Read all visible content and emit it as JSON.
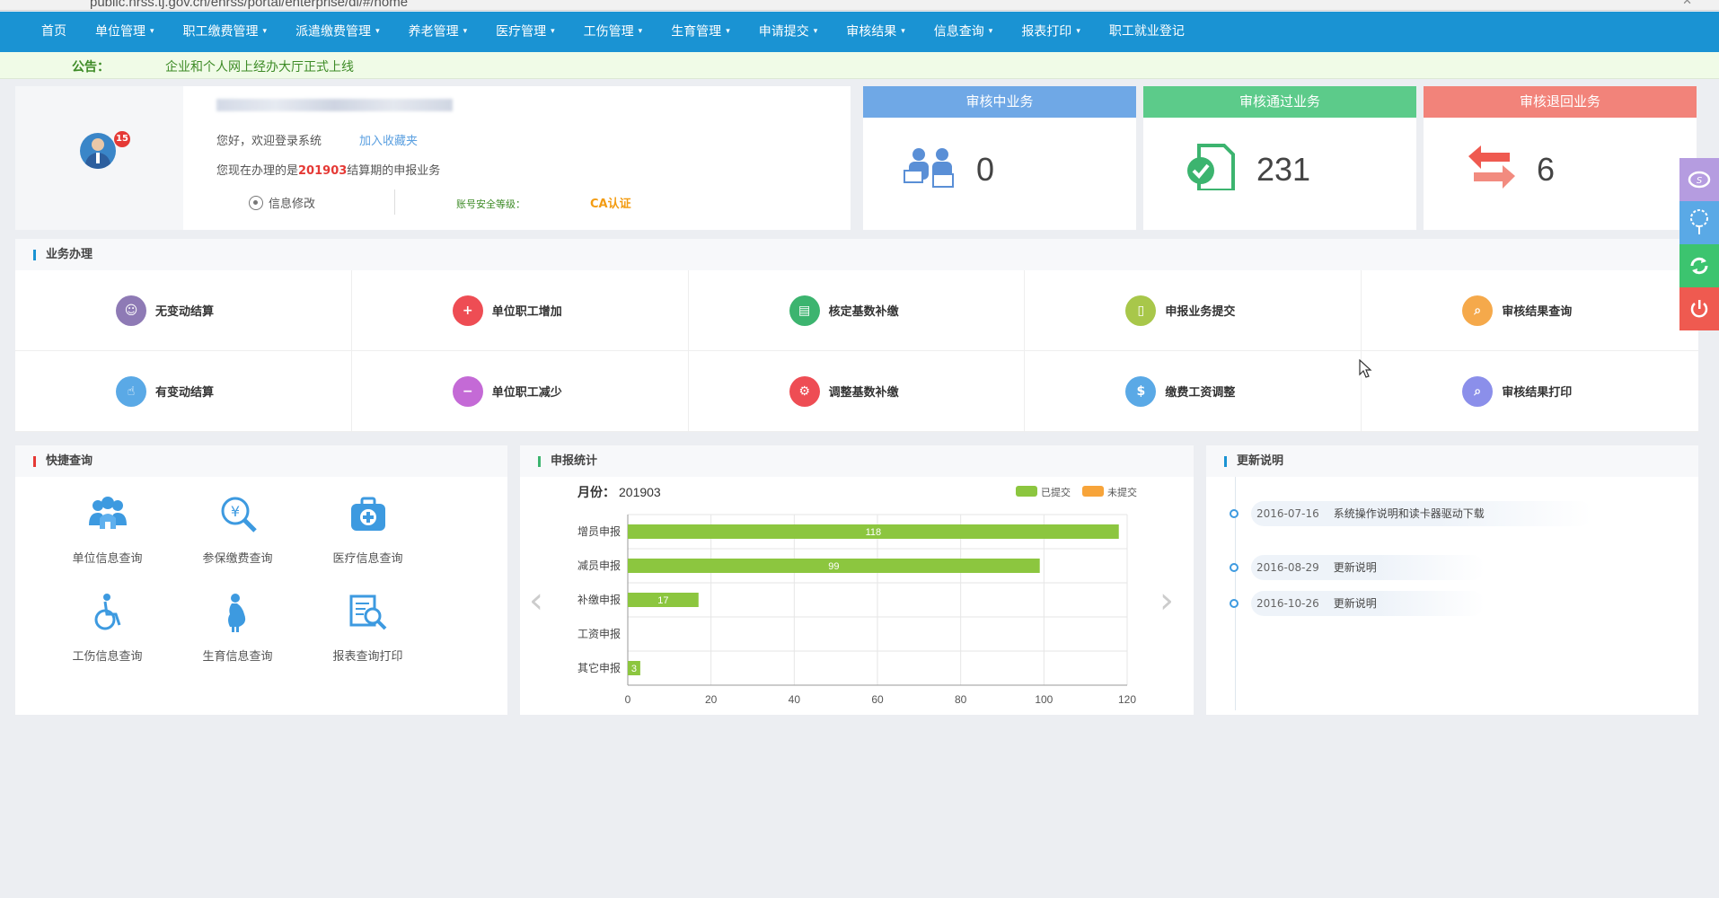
{
  "browser": {
    "url": "public.hrss.tj.gov.cn/ehrss/portal/enterprise/di/#/home",
    "close": "✕"
  },
  "nav": {
    "items": [
      {
        "label": "首页",
        "dropdown": false
      },
      {
        "label": "单位管理",
        "dropdown": true
      },
      {
        "label": "职工缴费管理",
        "dropdown": true
      },
      {
        "label": "派遣缴费管理",
        "dropdown": true
      },
      {
        "label": "养老管理",
        "dropdown": true
      },
      {
        "label": "医疗管理",
        "dropdown": true
      },
      {
        "label": "工伤管理",
        "dropdown": true
      },
      {
        "label": "生育管理",
        "dropdown": true
      },
      {
        "label": "申请提交",
        "dropdown": true
      },
      {
        "label": "审核结果",
        "dropdown": true
      },
      {
        "label": "信息查询",
        "dropdown": true
      },
      {
        "label": "报表打印",
        "dropdown": true
      },
      {
        "label": "职工就业登记",
        "dropdown": false
      }
    ],
    "caret": "▾"
  },
  "notice": {
    "label": "公告：",
    "text": "企业和个人网上经办大厅正式上线"
  },
  "user": {
    "badge": "15",
    "welcome": "您好，欢迎登录系统",
    "favorite": "加入收藏夹",
    "period_prefix": "您现在办理的是",
    "period": "201903",
    "period_suffix": "结算期的申报业务",
    "edit": "信息修改",
    "security": "账号安全等级：",
    "ca": "CA认证"
  },
  "stats": [
    {
      "title": "审核中业务",
      "value": "0",
      "color": "#6fa8e6"
    },
    {
      "title": "审核通过业务",
      "value": "231",
      "color": "#5ccb8a"
    },
    {
      "title": "审核退回业务",
      "value": "6",
      "color": "#f2837a"
    }
  ],
  "business": {
    "title": "业务办理",
    "items": [
      {
        "label": "无变动结算",
        "color": "#8e7ab5",
        "icon": "user-circle-icon"
      },
      {
        "label": "单位职工增加",
        "color": "#ee4d54",
        "icon": "user-add-icon"
      },
      {
        "label": "核定基数补缴",
        "color": "#3cb46f",
        "icon": "card-icon"
      },
      {
        "label": "申报业务提交",
        "color": "#a8c74a",
        "icon": "document-icon"
      },
      {
        "label": "审核结果查询",
        "color": "#f5a94b",
        "icon": "search-icon"
      },
      {
        "label": "有变动结算",
        "color": "#5aa9e6",
        "icon": "hand-icon"
      },
      {
        "label": "单位职工减少",
        "color": "#c46ad6",
        "icon": "user-remove-icon"
      },
      {
        "label": "调整基数补缴",
        "color": "#ee4d54",
        "icon": "gear-icon"
      },
      {
        "label": "缴费工资调整",
        "color": "#5aa9e6",
        "icon": "money-icon"
      },
      {
        "label": "审核结果打印",
        "color": "#8b8fea",
        "icon": "search-icon"
      }
    ]
  },
  "quick": {
    "title": "快捷查询",
    "items": [
      {
        "label": "单位信息查询",
        "icon": "group-icon"
      },
      {
        "label": "参保缴费查询",
        "icon": "money-search-icon"
      },
      {
        "label": "医疗信息查询",
        "icon": "medical-kit-icon"
      },
      {
        "label": "工伤信息查询",
        "icon": "wheelchair-icon"
      },
      {
        "label": "生育信息查询",
        "icon": "pregnant-icon"
      },
      {
        "label": "报表查询打印",
        "icon": "report-search-icon"
      }
    ]
  },
  "stats_section": {
    "title": "申报统计",
    "month_label": "月份：",
    "month": "201903",
    "prev": "‹",
    "next": "›"
  },
  "updates": {
    "title": "更新说明",
    "items": [
      {
        "date": "2016-07-16",
        "text": "系统操作说明和读卡器驱动下载"
      },
      {
        "date": "2016-08-29",
        "text": "更新说明"
      },
      {
        "date": "2016-10-26",
        "text": "更新说明"
      }
    ]
  },
  "chart_data": {
    "type": "bar",
    "orientation": "horizontal",
    "categories": [
      "增员申报",
      "减员申报",
      "补缴申报",
      "工资申报",
      "其它申报"
    ],
    "series": [
      {
        "name": "已提交",
        "values": [
          118,
          99,
          17,
          0,
          3
        ],
        "color": "#8cc63f"
      },
      {
        "name": "未提交",
        "values": [
          0,
          0,
          0,
          0,
          0
        ],
        "color": "#f7a43a"
      }
    ],
    "xlim": [
      0,
      120
    ],
    "xticks": [
      0,
      20,
      40,
      60,
      80,
      100,
      120
    ],
    "grid": true,
    "legend_position": "top-right"
  }
}
